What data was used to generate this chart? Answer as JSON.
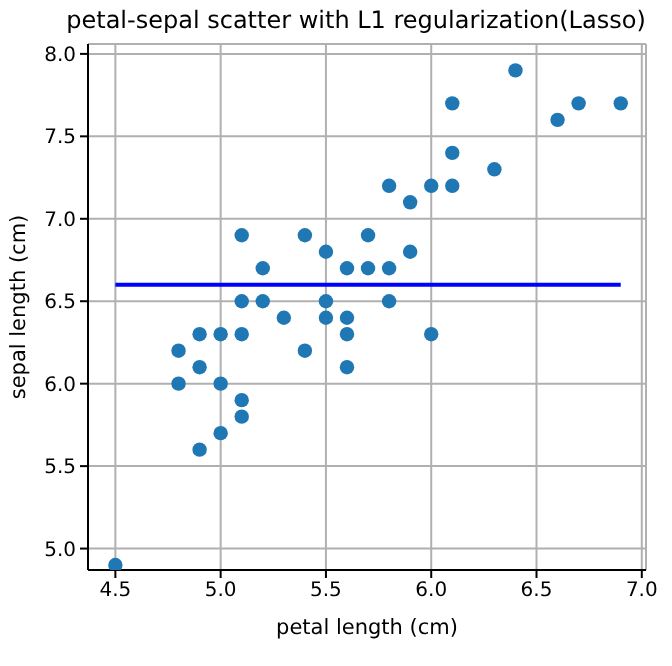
{
  "chart_data": {
    "type": "scatter",
    "title": "petal-sepal scatter with L1 regularization(Lasso)",
    "xlabel": "petal length (cm)",
    "ylabel": "sepal length (cm)",
    "series": [
      {
        "type": "scatter",
        "color": "#1f77b4",
        "marker": "circle",
        "x": [
          4.5,
          4.8,
          4.8,
          4.9,
          4.9,
          4.9,
          5.0,
          5.0,
          5.0,
          5.1,
          5.1,
          5.1,
          5.1,
          5.1,
          5.2,
          5.2,
          5.3,
          5.4,
          5.4,
          5.5,
          5.5,
          5.5,
          5.6,
          5.6,
          5.6,
          5.6,
          5.7,
          5.7,
          5.8,
          5.8,
          5.8,
          5.9,
          5.9,
          6.0,
          6.0,
          6.1,
          6.1,
          6.1,
          6.3,
          6.4,
          6.6,
          6.7,
          6.9
        ],
        "values": [
          4.9,
          6.2,
          6.0,
          6.3,
          6.1,
          5.6,
          6.3,
          6.0,
          5.7,
          6.9,
          6.5,
          6.3,
          5.9,
          5.8,
          6.7,
          6.5,
          6.4,
          6.9,
          6.2,
          6.8,
          6.5,
          6.4,
          6.7,
          6.4,
          6.3,
          6.1,
          6.9,
          6.7,
          7.2,
          6.7,
          6.5,
          7.1,
          6.8,
          7.2,
          6.3,
          7.7,
          7.4,
          7.2,
          7.3,
          7.9,
          7.6,
          7.7,
          7.7
        ]
      },
      {
        "type": "line",
        "color": "#0000ff",
        "marker": "none",
        "line_style": "solid",
        "x": [
          4.5,
          6.9
        ],
        "values": [
          6.6,
          6.6
        ]
      }
    ],
    "xlim": [
      4.37,
      7.02
    ],
    "ylim": [
      4.87,
      8.06
    ],
    "xticks": [
      4.5,
      {
        "value": 5,
        "label": "5.0"
      },
      5.5,
      {
        "value": 6,
        "label": "6.0"
      },
      6.5,
      {
        "value": 7,
        "label": "7.0"
      }
    ],
    "yticks": [
      {
        "value": 5,
        "label": "5.0"
      },
      5.5,
      {
        "value": 6,
        "label": "6.0"
      },
      6.5,
      {
        "value": 7,
        "label": "7.0"
      },
      7.5,
      {
        "value": 8,
        "label": "8.0"
      }
    ],
    "grid": true
  }
}
